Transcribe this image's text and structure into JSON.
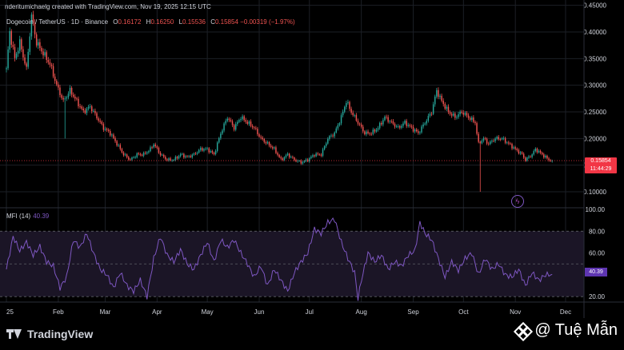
{
  "header": {
    "creator_line": "nderitumichaelg created with TradingView.com, Nov 19, 2025 12:15 UTC"
  },
  "legend": {
    "symbol": "Dogecoin / TetherUS · 1D · Binance",
    "o_key": "O",
    "o_val": "0.16172",
    "h_key": "H",
    "h_val": "0.16250",
    "l_key": "L",
    "l_val": "0.15536",
    "c_key": "C",
    "c_val": "0.15854",
    "change": "−0.00319 (−1.97%)"
  },
  "price_tag": {
    "price": "0.15854",
    "countdown": "11:44:29"
  },
  "mfi": {
    "label": "MFI (14)",
    "value": "40.39",
    "tag": "40.39"
  },
  "footer": {
    "brand": "TradingView"
  },
  "watermark": {
    "text": "@ Tuệ Mẫn"
  },
  "colors": {
    "up": "#26a69a",
    "down": "#ef5350",
    "mfi": "#7e57c2",
    "band": "#1b1526",
    "price_line": "#f23645",
    "bg": "#000000",
    "grid": "#1c1f26"
  },
  "icons": [
    "tradingview-logo-icon",
    "lightning-icon",
    "binance-diamond-icon"
  ],
  "chart_data": [
    {
      "type": "candlestick",
      "title": "Dogecoin / TetherUS · 1D · Binance",
      "ylim": [
        0.07,
        0.46
      ],
      "y_ticks": [
        0.1,
        0.15,
        0.2,
        0.25,
        0.3,
        0.35,
        0.4,
        0.45
      ],
      "y_tick_labels": [
        "0.10000",
        "0.15000",
        "0.20000",
        "0.25000",
        "0.30000",
        "0.35000",
        "0.40000",
        "0.45000"
      ],
      "x_tick_labels": [
        "25",
        "Feb",
        "Mar",
        "Apr",
        "May",
        "Jun",
        "Jul",
        "Aug",
        "Sep",
        "Oct",
        "Nov",
        "Dec"
      ],
      "x_tick_days": [
        0,
        31,
        59,
        90,
        120,
        151,
        181,
        212,
        243,
        273,
        304,
        334
      ],
      "x_range_days": [
        0,
        345
      ],
      "current_price": 0.15854,
      "anchors": [
        [
          0,
          0.33
        ],
        [
          2,
          0.4
        ],
        [
          5,
          0.35
        ],
        [
          8,
          0.38
        ],
        [
          12,
          0.33
        ],
        [
          15,
          0.43
        ],
        [
          18,
          0.38
        ],
        [
          22,
          0.36
        ],
        [
          26,
          0.34
        ],
        [
          30,
          0.3
        ],
        [
          34,
          0.27
        ],
        [
          38,
          0.29
        ],
        [
          42,
          0.27
        ],
        [
          46,
          0.25
        ],
        [
          50,
          0.26
        ],
        [
          54,
          0.24
        ],
        [
          58,
          0.22
        ],
        [
          62,
          0.21
        ],
        [
          66,
          0.19
        ],
        [
          70,
          0.17
        ],
        [
          74,
          0.16
        ],
        [
          78,
          0.17
        ],
        [
          82,
          0.17
        ],
        [
          86,
          0.18
        ],
        [
          88,
          0.19
        ],
        [
          92,
          0.17
        ],
        [
          96,
          0.16
        ],
        [
          100,
          0.16
        ],
        [
          104,
          0.17
        ],
        [
          108,
          0.165
        ],
        [
          112,
          0.17
        ],
        [
          116,
          0.18
        ],
        [
          120,
          0.18
        ],
        [
          124,
          0.17
        ],
        [
          128,
          0.21
        ],
        [
          132,
          0.24
        ],
        [
          136,
          0.22
        ],
        [
          140,
          0.24
        ],
        [
          144,
          0.23
        ],
        [
          148,
          0.22
        ],
        [
          152,
          0.2
        ],
        [
          156,
          0.19
        ],
        [
          160,
          0.18
        ],
        [
          164,
          0.16
        ],
        [
          168,
          0.17
        ],
        [
          172,
          0.16
        ],
        [
          176,
          0.155
        ],
        [
          180,
          0.16
        ],
        [
          184,
          0.17
        ],
        [
          188,
          0.17
        ],
        [
          192,
          0.2
        ],
        [
          196,
          0.21
        ],
        [
          200,
          0.24
        ],
        [
          203,
          0.27
        ],
        [
          206,
          0.25
        ],
        [
          210,
          0.23
        ],
        [
          214,
          0.21
        ],
        [
          218,
          0.21
        ],
        [
          222,
          0.22
        ],
        [
          226,
          0.24
        ],
        [
          230,
          0.23
        ],
        [
          234,
          0.22
        ],
        [
          238,
          0.23
        ],
        [
          242,
          0.22
        ],
        [
          246,
          0.21
        ],
        [
          250,
          0.23
        ],
        [
          254,
          0.25
        ],
        [
          257,
          0.29
        ],
        [
          260,
          0.27
        ],
        [
          264,
          0.25
        ],
        [
          268,
          0.24
        ],
        [
          272,
          0.25
        ],
        [
          276,
          0.24
        ],
        [
          280,
          0.23
        ],
        [
          282,
          0.19
        ],
        [
          285,
          0.2
        ],
        [
          288,
          0.19
        ],
        [
          292,
          0.2
        ],
        [
          296,
          0.2
        ],
        [
          300,
          0.19
        ],
        [
          304,
          0.18
        ],
        [
          308,
          0.17
        ],
        [
          310,
          0.16
        ],
        [
          314,
          0.17
        ],
        [
          316,
          0.18
        ],
        [
          320,
          0.17
        ],
        [
          324,
          0.16
        ],
        [
          326,
          0.15854
        ]
      ],
      "spikes": [
        {
          "day": 283,
          "low": 0.1
        },
        {
          "day": 35,
          "low": 0.2
        }
      ]
    },
    {
      "type": "line",
      "title": "MFI (14)",
      "ylim": [
        15,
        100
      ],
      "y_ticks": [
        20,
        40,
        60,
        80,
        100
      ],
      "y_tick_labels": [
        "20.00",
        "",
        "60.00",
        "80.00",
        "100.00"
      ],
      "band": [
        20,
        80
      ],
      "last_value": 40.39,
      "anchors": [
        [
          0,
          45
        ],
        [
          4,
          75
        ],
        [
          8,
          62
        ],
        [
          12,
          70
        ],
        [
          16,
          58
        ],
        [
          20,
          66
        ],
        [
          24,
          52
        ],
        [
          28,
          48
        ],
        [
          32,
          28
        ],
        [
          36,
          38
        ],
        [
          40,
          72
        ],
        [
          44,
          65
        ],
        [
          48,
          78
        ],
        [
          52,
          60
        ],
        [
          56,
          45
        ],
        [
          60,
          40
        ],
        [
          64,
          28
        ],
        [
          68,
          42
        ],
        [
          72,
          30
        ],
        [
          76,
          25
        ],
        [
          80,
          35
        ],
        [
          84,
          20
        ],
        [
          88,
          55
        ],
        [
          92,
          75
        ],
        [
          96,
          58
        ],
        [
          100,
          52
        ],
        [
          104,
          63
        ],
        [
          108,
          50
        ],
        [
          112,
          45
        ],
        [
          116,
          58
        ],
        [
          120,
          70
        ],
        [
          124,
          52
        ],
        [
          128,
          72
        ],
        [
          132,
          65
        ],
        [
          136,
          72
        ],
        [
          140,
          60
        ],
        [
          144,
          50
        ],
        [
          148,
          38
        ],
        [
          152,
          48
        ],
        [
          156,
          30
        ],
        [
          160,
          45
        ],
        [
          164,
          35
        ],
        [
          168,
          25
        ],
        [
          172,
          42
        ],
        [
          176,
          52
        ],
        [
          180,
          60
        ],
        [
          184,
          82
        ],
        [
          188,
          78
        ],
        [
          192,
          88
        ],
        [
          196,
          91
        ],
        [
          200,
          70
        ],
        [
          204,
          55
        ],
        [
          208,
          42
        ],
        [
          210,
          18
        ],
        [
          212,
          35
        ],
        [
          216,
          60
        ],
        [
          220,
          52
        ],
        [
          224,
          58
        ],
        [
          228,
          45
        ],
        [
          232,
          52
        ],
        [
          236,
          48
        ],
        [
          240,
          58
        ],
        [
          244,
          62
        ],
        [
          247,
          88
        ],
        [
          250,
          78
        ],
        [
          254,
          72
        ],
        [
          258,
          55
        ],
        [
          262,
          38
        ],
        [
          266,
          52
        ],
        [
          270,
          44
        ],
        [
          274,
          55
        ],
        [
          278,
          60
        ],
        [
          282,
          40
        ],
        [
          286,
          55
        ],
        [
          290,
          45
        ],
        [
          294,
          50
        ],
        [
          298,
          40
        ],
        [
          302,
          38
        ],
        [
          306,
          45
        ],
        [
          310,
          30
        ],
        [
          314,
          42
        ],
        [
          318,
          35
        ],
        [
          322,
          40
        ],
        [
          326,
          40.39
        ]
      ]
    }
  ]
}
